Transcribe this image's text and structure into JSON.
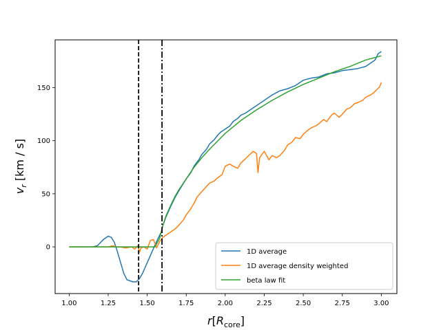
{
  "chart_data": {
    "type": "line",
    "title": "",
    "xlabel": {
      "main": "r",
      "bracket_open": "[",
      "var": "R",
      "sub": "core",
      "bracket_close": "]"
    },
    "ylabel": {
      "var": "v",
      "sub": "r",
      "unit": " [km / s]"
    },
    "xlim": [
      0.91,
      3.1
    ],
    "ylim": [
      -44,
      195
    ],
    "xticks": [
      1.0,
      1.25,
      1.5,
      1.75,
      2.0,
      2.25,
      2.5,
      2.75,
      3.0
    ],
    "xtick_labels": [
      "1.00",
      "1.25",
      "1.50",
      "1.75",
      "2.00",
      "2.25",
      "2.50",
      "2.75",
      "3.00"
    ],
    "yticks": [
      0,
      50,
      100,
      150
    ],
    "ytick_labels": [
      "0",
      "50",
      "100",
      "150"
    ],
    "vlines": [
      {
        "x": 1.445,
        "style": "dashed",
        "color": "#000000"
      },
      {
        "x": 1.595,
        "style": "dashdot",
        "color": "#000000"
      }
    ],
    "legend_position": "lower-right",
    "series": [
      {
        "name": "1D average",
        "color": "#1f77b4",
        "x": [
          1.0,
          1.1,
          1.15,
          1.18,
          1.2,
          1.22,
          1.25,
          1.27,
          1.29,
          1.31,
          1.33,
          1.35,
          1.37,
          1.39,
          1.41,
          1.43,
          1.45,
          1.47,
          1.5,
          1.53,
          1.56,
          1.59,
          1.6,
          1.62,
          1.65,
          1.68,
          1.7,
          1.72,
          1.75,
          1.78,
          1.8,
          1.83,
          1.85,
          1.88,
          1.9,
          1.93,
          1.95,
          1.97,
          2.0,
          2.03,
          2.05,
          2.08,
          2.1,
          2.13,
          2.15,
          2.18,
          2.2,
          2.25,
          2.3,
          2.35,
          2.4,
          2.45,
          2.5,
          2.55,
          2.6,
          2.65,
          2.7,
          2.75,
          2.8,
          2.85,
          2.9,
          2.93,
          2.96,
          2.98,
          3.0
        ],
        "y": [
          0,
          0,
          0,
          1,
          4,
          7,
          10,
          9,
          4,
          -5,
          -15,
          -25,
          -31,
          -32,
          -33,
          -33,
          -30,
          -25,
          -15,
          -5,
          5,
          14,
          20,
          28,
          38,
          47,
          52,
          57,
          64,
          70,
          76,
          82,
          87,
          92,
          97,
          101,
          105,
          108,
          111,
          114,
          118,
          121,
          124,
          126,
          128,
          131,
          133,
          138,
          143,
          147,
          149,
          152,
          157,
          159,
          160,
          163,
          164,
          166,
          167,
          168,
          170,
          173,
          176,
          182,
          184
        ]
      },
      {
        "name": "1D average density weighted",
        "color": "#ff7f0e",
        "x": [
          1.0,
          1.1,
          1.2,
          1.25,
          1.28,
          1.3,
          1.33,
          1.36,
          1.4,
          1.42,
          1.44,
          1.45,
          1.46,
          1.48,
          1.5,
          1.52,
          1.54,
          1.56,
          1.58,
          1.6,
          1.62,
          1.65,
          1.68,
          1.7,
          1.73,
          1.75,
          1.78,
          1.8,
          1.82,
          1.85,
          1.88,
          1.9,
          1.93,
          1.95,
          1.98,
          2.0,
          2.03,
          2.05,
          2.08,
          2.1,
          2.13,
          2.15,
          2.18,
          2.2,
          2.21,
          2.22,
          2.25,
          2.28,
          2.3,
          2.33,
          2.35,
          2.38,
          2.4,
          2.43,
          2.45,
          2.48,
          2.5,
          2.53,
          2.55,
          2.58,
          2.6,
          2.63,
          2.65,
          2.68,
          2.7,
          2.73,
          2.75,
          2.78,
          2.8,
          2.83,
          2.85,
          2.88,
          2.9,
          2.93,
          2.95,
          2.97,
          2.99,
          3.0
        ],
        "y": [
          0,
          0,
          0,
          0,
          1,
          0,
          0,
          -1,
          0,
          -2,
          1,
          -5,
          -1,
          0,
          -2,
          6,
          7,
          -1,
          5,
          9,
          11,
          14,
          17,
          20,
          25,
          30,
          36,
          41,
          47,
          52,
          57,
          60,
          62,
          65,
          68,
          76,
          78,
          76,
          74,
          79,
          83,
          86,
          90,
          88,
          70,
          84,
          90,
          82,
          86,
          84,
          86,
          91,
          96,
          99,
          103,
          102,
          106,
          110,
          112,
          114,
          116,
          120,
          118,
          124,
          126,
          122,
          125,
          130,
          131,
          135,
          136,
          138,
          141,
          143,
          145,
          148,
          151,
          155
        ]
      },
      {
        "name": "beta law fit",
        "color": "#2ca02c",
        "x": [
          1.0,
          1.1,
          1.2,
          1.3,
          1.4,
          1.5,
          1.55,
          1.58,
          1.6,
          1.62,
          1.65,
          1.68,
          1.7,
          1.75,
          1.8,
          1.85,
          1.9,
          2.0,
          2.1,
          2.2,
          2.3,
          2.4,
          2.5,
          2.6,
          2.7,
          2.8,
          2.9,
          3.0
        ],
        "y": [
          0,
          0,
          0,
          0,
          0,
          0,
          0,
          8,
          20,
          29,
          39,
          48,
          53,
          64,
          75,
          84,
          92,
          107,
          119,
          129,
          138,
          146,
          153,
          159,
          165,
          170,
          176,
          180
        ]
      }
    ]
  }
}
